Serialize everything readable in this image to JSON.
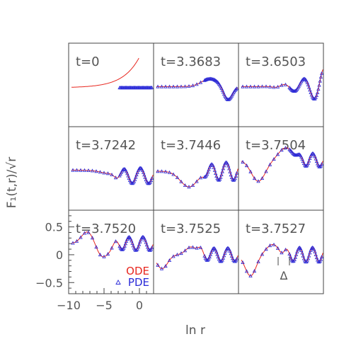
{
  "figure": {
    "ylabel": "F₁(t,r)/√r",
    "xlabel": "ln r",
    "xticks": [
      "−10",
      "−5",
      "0"
    ],
    "yticks": [
      "0.5",
      "0",
      "−0.5"
    ],
    "legend": {
      "ode": "ODE",
      "pde": "PDE"
    },
    "delta_label": "Δ",
    "colors": {
      "ode": "#e8271f",
      "pde": "#2b2bd8",
      "frame": "#444444",
      "text": "#555555"
    }
  },
  "chart_data": {
    "type": "line",
    "xlabel": "ln r",
    "ylabel": "F₁(t,r)/√r",
    "xlim": [
      -10,
      2
    ],
    "ylim": [
      -0.7,
      0.8
    ],
    "grid": false,
    "legend_position": "bottom-right of bottom-left panel",
    "panels": [
      {
        "label": "t=0",
        "t": 0
      },
      {
        "label": "t=3.3683",
        "t": 3.3683
      },
      {
        "label": "t=3.6503",
        "t": 3.6503
      },
      {
        "label": "t=3.7242",
        "t": 3.7242
      },
      {
        "label": "t=3.7446",
        "t": 3.7446
      },
      {
        "label": "t=3.7504",
        "t": 3.7504
      },
      {
        "label": "t=3.7520",
        "t": 3.752
      },
      {
        "label": "t=3.7525",
        "t": 3.7525
      },
      {
        "label": "t=3.7527",
        "t": 3.7527
      }
    ],
    "series": [
      {
        "name": "ODE"
      },
      {
        "name": "PDE"
      }
    ]
  }
}
